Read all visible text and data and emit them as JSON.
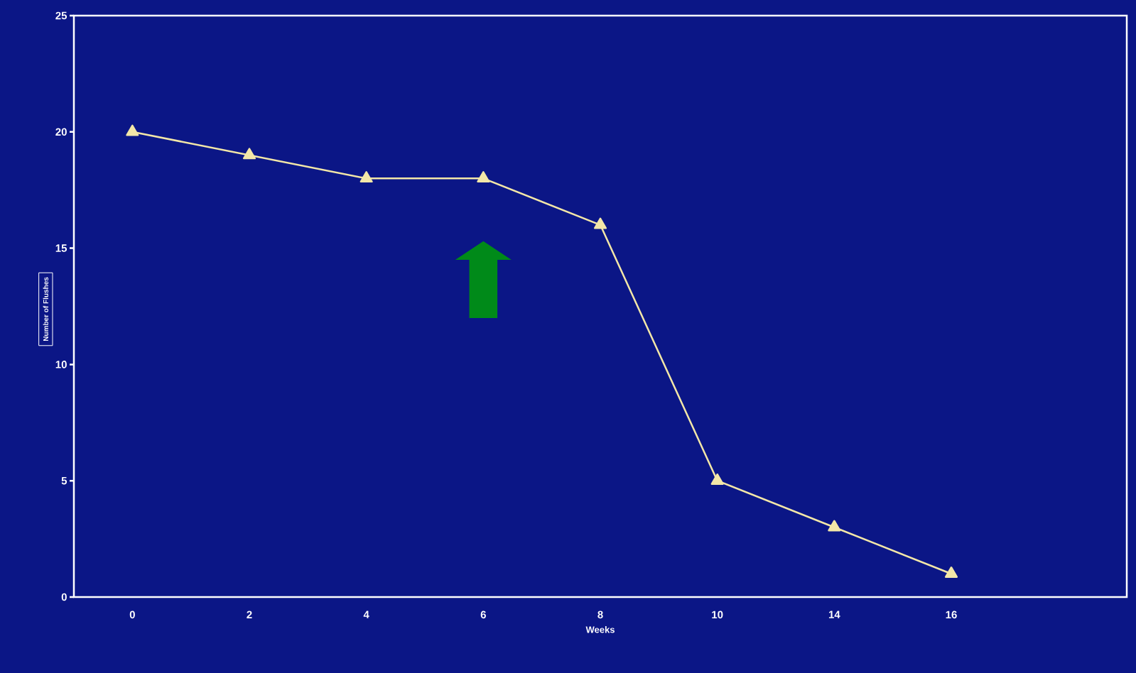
{
  "chart_data": {
    "type": "line",
    "xlabel": "Weeks",
    "ylabel": "Number of Flushes",
    "categories": [
      "0",
      "2",
      "4",
      "6",
      "8",
      "10",
      "14",
      "16",
      null
    ],
    "values": [
      20,
      19,
      18,
      18,
      16,
      5,
      3,
      1,
      null
    ],
    "color": "#f3e7a8",
    "marker": "triangle",
    "ylim": [
      0,
      25
    ],
    "yticks": [
      0,
      5,
      10,
      15,
      20,
      25
    ],
    "grid": false
  }
}
